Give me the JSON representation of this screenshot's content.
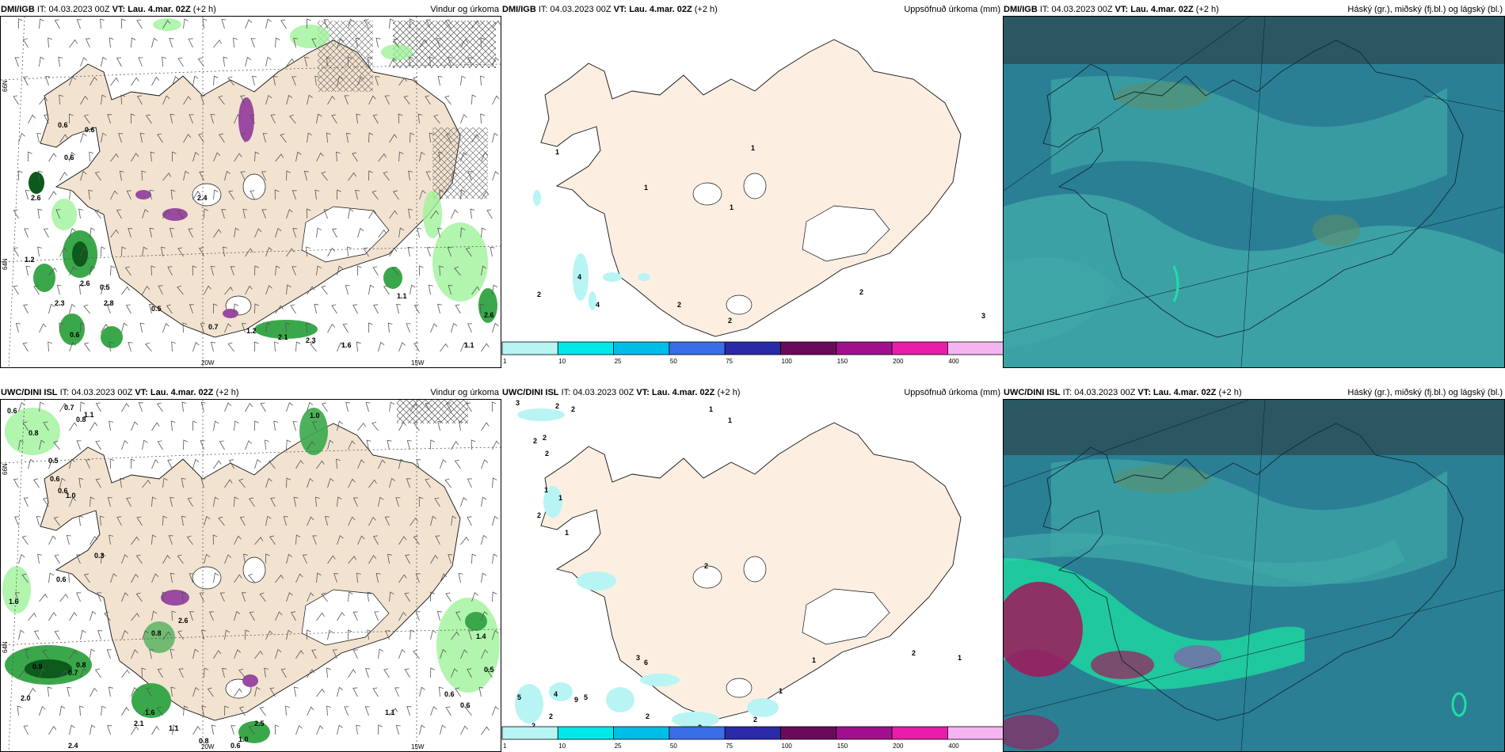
{
  "panels": [
    {
      "model": "DMI/IGB",
      "it": "IT: 04.03.2023 00Z",
      "vt": "VT: Lau. 4.mar. 02Z",
      "lead": "(+2 h)",
      "desc": "Vindur og úrkoma"
    },
    {
      "model": "DMI/IGB",
      "it": "IT: 04.03.2023 00Z",
      "vt": "VT: Lau. 4.mar. 02Z",
      "lead": "(+2 h)",
      "desc": "Uppsöfnuð úrkoma (mm)"
    },
    {
      "model": "DMI/IGB",
      "it": "IT: 04.03.2023 00Z",
      "vt": "VT: Lau. 4.mar. 02Z",
      "lead": "(+2 h)",
      "desc": "Háský (gr.), miðský (fj.bl.) og lágský (bl.)"
    },
    {
      "model": "UWC/DINI ISL",
      "it": "IT: 04.03.2023 00Z",
      "vt": "VT: Lau. 4.mar. 02Z",
      "lead": "(+2 h)",
      "desc": "Vindur og úrkoma"
    },
    {
      "model": "UWC/DINI ISL",
      "it": "IT: 04.03.2023 00Z",
      "vt": "VT: Lau. 4.mar. 02Z",
      "lead": "(+2 h)",
      "desc": "Uppsöfnuð úrkoma (mm)"
    },
    {
      "model": "UWC/DINI ISL",
      "it": "IT: 04.03.2023 00Z",
      "vt": "VT: Lau. 4.mar. 02Z",
      "lead": "(+2 h)",
      "desc": "Háský (gr.), miðský (fj.bl.) og lágský (bl.)"
    }
  ],
  "axes": {
    "lon_20": "20W",
    "lon_15": "15W",
    "lat_66": "66N",
    "lat_64": "64N"
  },
  "colorbar": {
    "ticks": [
      "1",
      "10",
      "25",
      "50",
      "75",
      "100",
      "150",
      "200",
      "400"
    ],
    "colors": [
      "#b8f4f4",
      "#00e8e8",
      "#00bde8",
      "#3a6de8",
      "#2a2aa8",
      "#6a0a5a",
      "#a0108c",
      "#e81ca8",
      "#f4b4f0"
    ]
  },
  "wind_labels_top": [
    "0.6",
    "0.6",
    "0.6",
    "2.6",
    "2.4",
    "1.2",
    "0.5",
    "2.3",
    "2.6",
    "2.8",
    "0.7",
    "1.2",
    "2.1",
    "2.3",
    "1.6",
    "1.1",
    "1.1",
    "2.6",
    "0.6",
    "0.5"
  ],
  "wind_labels_bottom": [
    "0.6",
    "0.7",
    "0.8",
    "1.1",
    "0.8",
    "1.0",
    "0.5",
    "0.6",
    "0.6",
    "1.0",
    "0.3",
    "1.6",
    "0.6",
    "0.8",
    "2.6",
    "0.9",
    "0.8",
    "0.7",
    "2.0",
    "2.4",
    "2.1",
    "1.6",
    "1.1",
    "0.8",
    "0.6",
    "1.0",
    "2.5",
    "1.1",
    "0.6",
    "0.6",
    "0.5",
    "1.4"
  ],
  "precip_labels_top": [
    "1",
    "1",
    "1",
    "1",
    "4",
    "4",
    "2",
    "2",
    "2",
    "2",
    "3"
  ],
  "precip_labels_bottom": [
    "3",
    "2",
    "2",
    "2",
    "2",
    "2",
    "1",
    "1",
    "2",
    "1",
    "1",
    "1",
    "2",
    "3",
    "6",
    "5",
    "4",
    "2",
    "9",
    "5",
    "2",
    "2",
    "2",
    "1",
    "2",
    "1",
    "1",
    "2",
    "1"
  ],
  "colors": {
    "land": "#f2e3d0",
    "land2": "#fcefe2",
    "cloud_low": "#2a7f95",
    "cloud_mid": "#3fa7a8",
    "cloud_high": "#2b4e54",
    "precip_light": "#9ff29a",
    "precip_mid": "#3aa84a",
    "precip_dark": "#0c5a1c"
  }
}
